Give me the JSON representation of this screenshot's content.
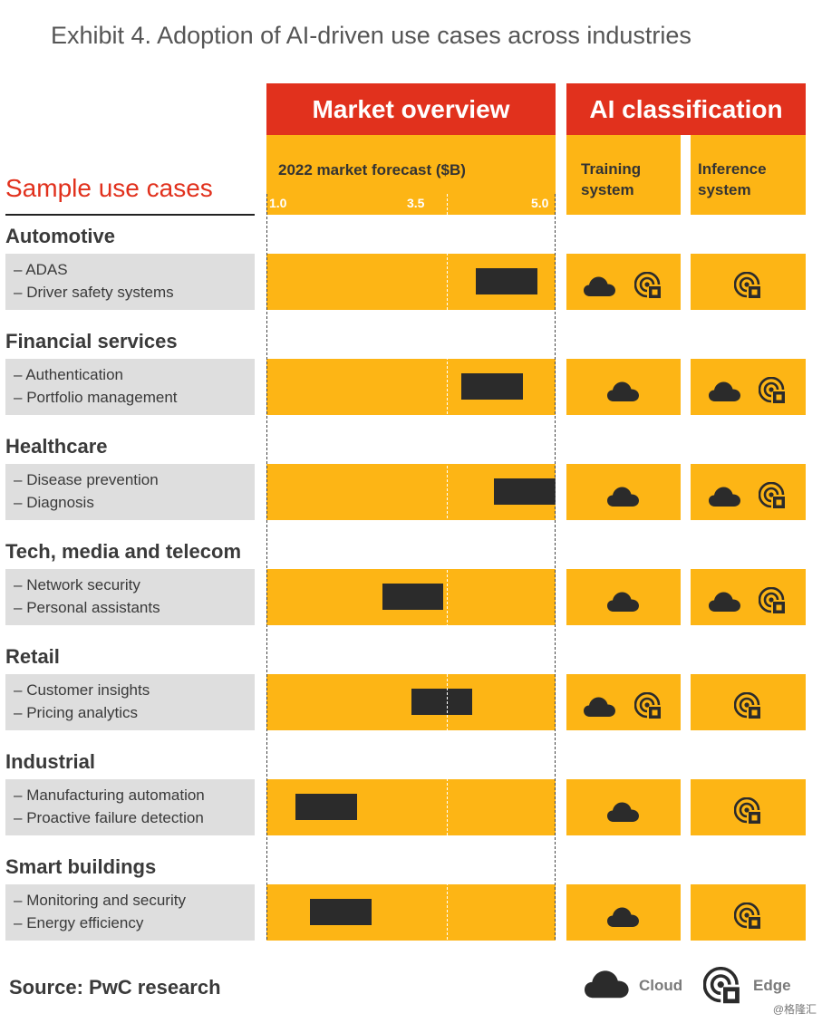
{
  "title": "Exhibit 4. Adoption of AI-driven use cases across industries",
  "left_header": "Sample use cases",
  "headers": {
    "market": "Market overview",
    "ai": "AI classification",
    "forecast": "2022 market forecast ($B)",
    "training": [
      "Training",
      "system"
    ],
    "inference": [
      "Inference",
      "system"
    ]
  },
  "chart_data": {
    "type": "bar",
    "xlim": [
      1.0,
      5.0
    ],
    "ticks": [
      "1.0",
      "3.5",
      "5.0"
    ],
    "rows": [
      {
        "industry": "Automotive",
        "cases": [
          "ADAS",
          "Driver safety systems"
        ],
        "range": [
          3.9,
          4.75
        ],
        "training": [
          "cloud",
          "edge"
        ],
        "inference": [
          "edge"
        ]
      },
      {
        "industry": "Financial services",
        "cases": [
          "Authentication",
          "Portfolio management"
        ],
        "range": [
          3.7,
          4.55
        ],
        "training": [
          "cloud"
        ],
        "inference": [
          "cloud",
          "edge"
        ]
      },
      {
        "industry": "Healthcare",
        "cases": [
          "Disease prevention",
          "Diagnosis"
        ],
        "range": [
          4.15,
          5.0
        ],
        "training": [
          "cloud"
        ],
        "inference": [
          "cloud",
          "edge"
        ]
      },
      {
        "industry": "Tech, media and telecom",
        "cases": [
          "Network security",
          "Personal assistants"
        ],
        "range": [
          2.6,
          3.45
        ],
        "training": [
          "cloud"
        ],
        "inference": [
          "cloud",
          "edge"
        ]
      },
      {
        "industry": "Retail",
        "cases": [
          "Customer insights",
          "Pricing analytics"
        ],
        "range": [
          3.0,
          3.85
        ],
        "training": [
          "cloud",
          "edge"
        ],
        "inference": [
          "edge"
        ]
      },
      {
        "industry": "Industrial",
        "cases": [
          "Manufacturing automation",
          "Proactive failure detection"
        ],
        "range": [
          1.4,
          2.25
        ],
        "training": [
          "cloud"
        ],
        "inference": [
          "edge"
        ]
      },
      {
        "industry": "Smart buildings",
        "cases": [
          "Monitoring and security",
          "Energy efficiency"
        ],
        "range": [
          1.6,
          2.45
        ],
        "training": [
          "cloud"
        ],
        "inference": [
          "edge"
        ]
      }
    ]
  },
  "legend": {
    "cloud": "Cloud",
    "edge": "Edge"
  },
  "source": "Source: PwC research",
  "watermark": "@格隆汇"
}
